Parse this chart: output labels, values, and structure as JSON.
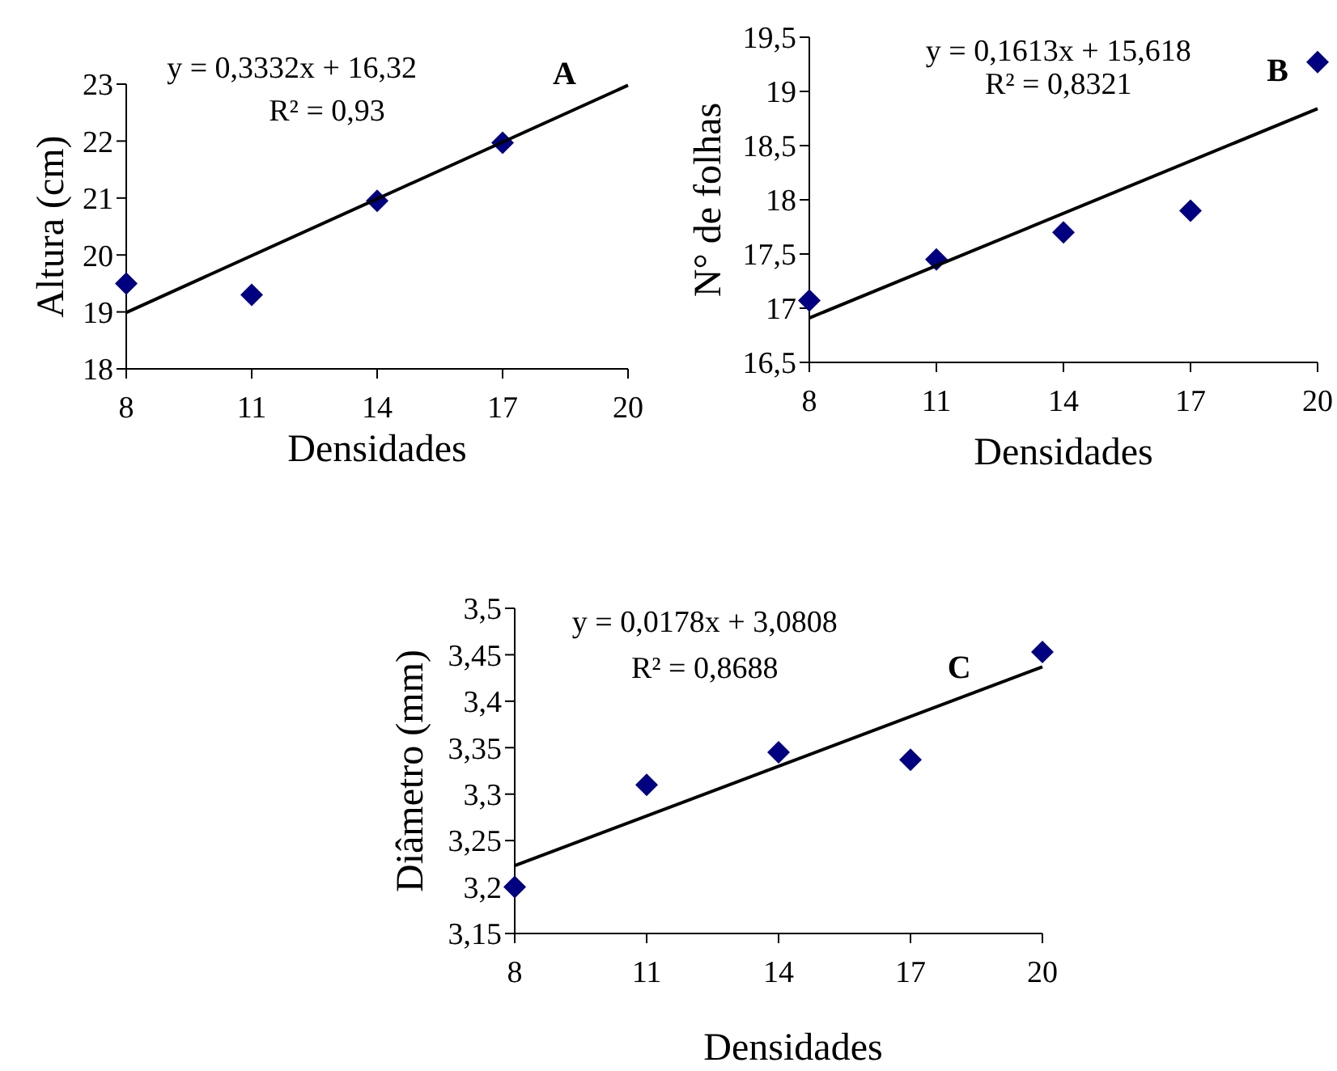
{
  "chart_data": [
    {
      "type": "scatter",
      "xlabel": "Densidades",
      "ylabel": "Altura (cm)",
      "annotations": [
        "y = 0,3332x + 16,32",
        "R² = 0,93",
        "A"
      ],
      "xlim": [
        8,
        20
      ],
      "xticks": [
        8,
        11,
        14,
        17,
        20
      ],
      "ylim": [
        18,
        23
      ],
      "yticks": [
        18,
        19,
        20,
        21,
        22,
        23
      ],
      "marker": "diamond",
      "grid": false,
      "series": [
        {
          "color": "#000080",
          "x": [
            8,
            11,
            14,
            17
          ],
          "values": [
            19.5,
            19.3,
            20.95,
            21.97
          ]
        },
        {
          "type": "line",
          "color": "#000000",
          "marker": "none",
          "x": [
            8,
            20
          ],
          "values": [
            18.99,
            22.98
          ]
        }
      ]
    },
    {
      "type": "scatter",
      "xlabel": "Densidades",
      "ylabel": "N° de folhas",
      "annotations": [
        "y = 0,1613x + 15,618",
        "R² = 0,8321",
        "B"
      ],
      "xlim": [
        8,
        20
      ],
      "xticks": [
        8,
        11,
        14,
        17,
        20
      ],
      "ylim": [
        16.5,
        19.5
      ],
      "yticks": [
        {
          "value": 16.5,
          "label": "16,5"
        },
        17,
        {
          "value": 17.5,
          "label": "17,5"
        },
        18,
        {
          "value": 18.5,
          "label": "18,5"
        },
        19,
        {
          "value": 19.5,
          "label": "19,5"
        }
      ],
      "marker": "diamond",
      "grid": false,
      "series": [
        {
          "color": "#000080",
          "x": [
            8,
            11,
            14,
            17,
            20
          ],
          "values": [
            17.07,
            17.45,
            17.7,
            17.9,
            19.27
          ]
        },
        {
          "type": "line",
          "color": "#000000",
          "marker": "none",
          "x": [
            8,
            20
          ],
          "values": [
            16.91,
            18.84
          ]
        }
      ]
    },
    {
      "type": "scatter",
      "xlabel": "Densidades",
      "ylabel": "Diâmetro (mm)",
      "annotations": [
        "y = 0,0178x + 3,0808",
        "R² = 0,8688",
        "C"
      ],
      "xlim": [
        8,
        20
      ],
      "xticks": [
        8,
        11,
        14,
        17,
        20
      ],
      "ylim": [
        3.15,
        3.5
      ],
      "yticks": [
        {
          "value": 3.15,
          "label": "3,15"
        },
        {
          "value": 3.2,
          "label": "3,2"
        },
        {
          "value": 3.25,
          "label": "3,25"
        },
        {
          "value": 3.3,
          "label": "3,3"
        },
        {
          "value": 3.35,
          "label": "3,35"
        },
        {
          "value": 3.4,
          "label": "3,4"
        },
        {
          "value": 3.45,
          "label": "3,45"
        },
        {
          "value": 3.5,
          "label": "3,5"
        }
      ],
      "marker": "diamond",
      "grid": false,
      "series": [
        {
          "color": "#000080",
          "x": [
            8,
            11,
            14,
            17,
            20
          ],
          "values": [
            3.2,
            3.31,
            3.345,
            3.337,
            3.453
          ]
        },
        {
          "type": "line",
          "color": "#000000",
          "marker": "none",
          "x": [
            8,
            20
          ],
          "values": [
            3.223,
            3.437
          ]
        }
      ]
    }
  ]
}
